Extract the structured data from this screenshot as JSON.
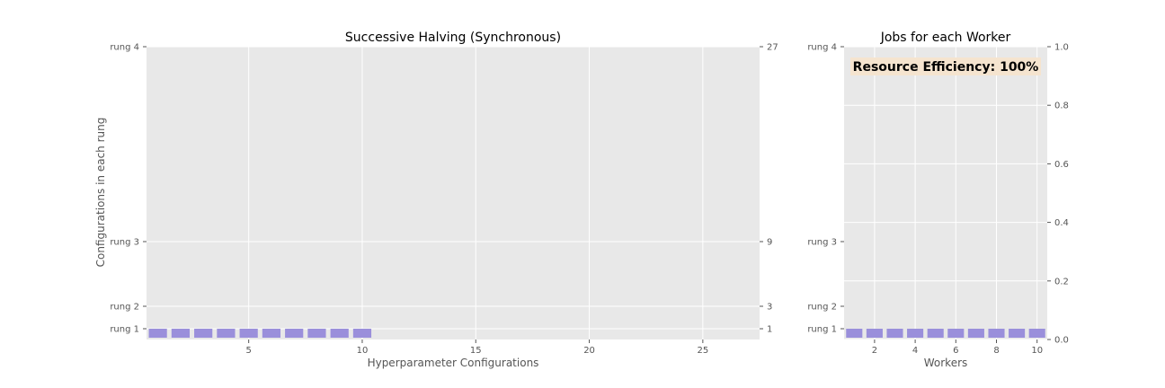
{
  "chart_data": [
    {
      "type": "bar",
      "title": "Successive Halving (Synchronous)",
      "xlabel": "Hyperparameter Configurations",
      "ylabel": "Configurations in each rung",
      "xlim": [
        0.5,
        27.5
      ],
      "xticks": [
        5,
        10,
        15,
        20,
        25
      ],
      "yticks": [
        {
          "value": 1,
          "label": "rung 1",
          "right_label": "1"
        },
        {
          "value": 2,
          "label": "rung 2",
          "right_label": "3"
        },
        {
          "value": 3,
          "label": "rung 3",
          "right_label": "9"
        },
        {
          "value": 4,
          "label": "rung 4",
          "right_label": "27"
        }
      ],
      "series": [
        {
          "x": [
            1,
            2,
            3,
            4,
            5,
            6,
            7,
            8,
            9,
            10
          ],
          "rung": [
            1,
            1,
            1,
            1,
            1,
            1,
            1,
            1,
            1,
            1
          ]
        }
      ],
      "grid": true
    },
    {
      "type": "bar",
      "title": "Jobs for each Worker",
      "xlabel": "Workers",
      "ylabel": "",
      "xlim": [
        0.5,
        10.5
      ],
      "xticks": [
        2,
        4,
        6,
        8,
        10
      ],
      "yticks_left": [
        {
          "value": 1,
          "label": "rung 1"
        },
        {
          "value": 2,
          "label": "rung 2"
        },
        {
          "value": 3,
          "label": "rung 3"
        },
        {
          "value": 4,
          "label": "rung 4"
        }
      ],
      "yticks_right": [
        "0.0",
        "0.2",
        "0.4",
        "0.6",
        "0.8",
        "1.0"
      ],
      "ylim_right": [
        0,
        1
      ],
      "series": [
        {
          "x": [
            1,
            2,
            3,
            4,
            5,
            6,
            7,
            8,
            9,
            10
          ],
          "rung": [
            1,
            1,
            1,
            1,
            1,
            1,
            1,
            1,
            1,
            1
          ]
        }
      ],
      "annotation": "Resource Efficiency: 100%",
      "grid": true
    }
  ],
  "colors": {
    "bar": "#9a8fdb",
    "plot_background": "#e8e8e8",
    "grid": "#ffffff",
    "annotation_background": "#f5e4cf"
  }
}
